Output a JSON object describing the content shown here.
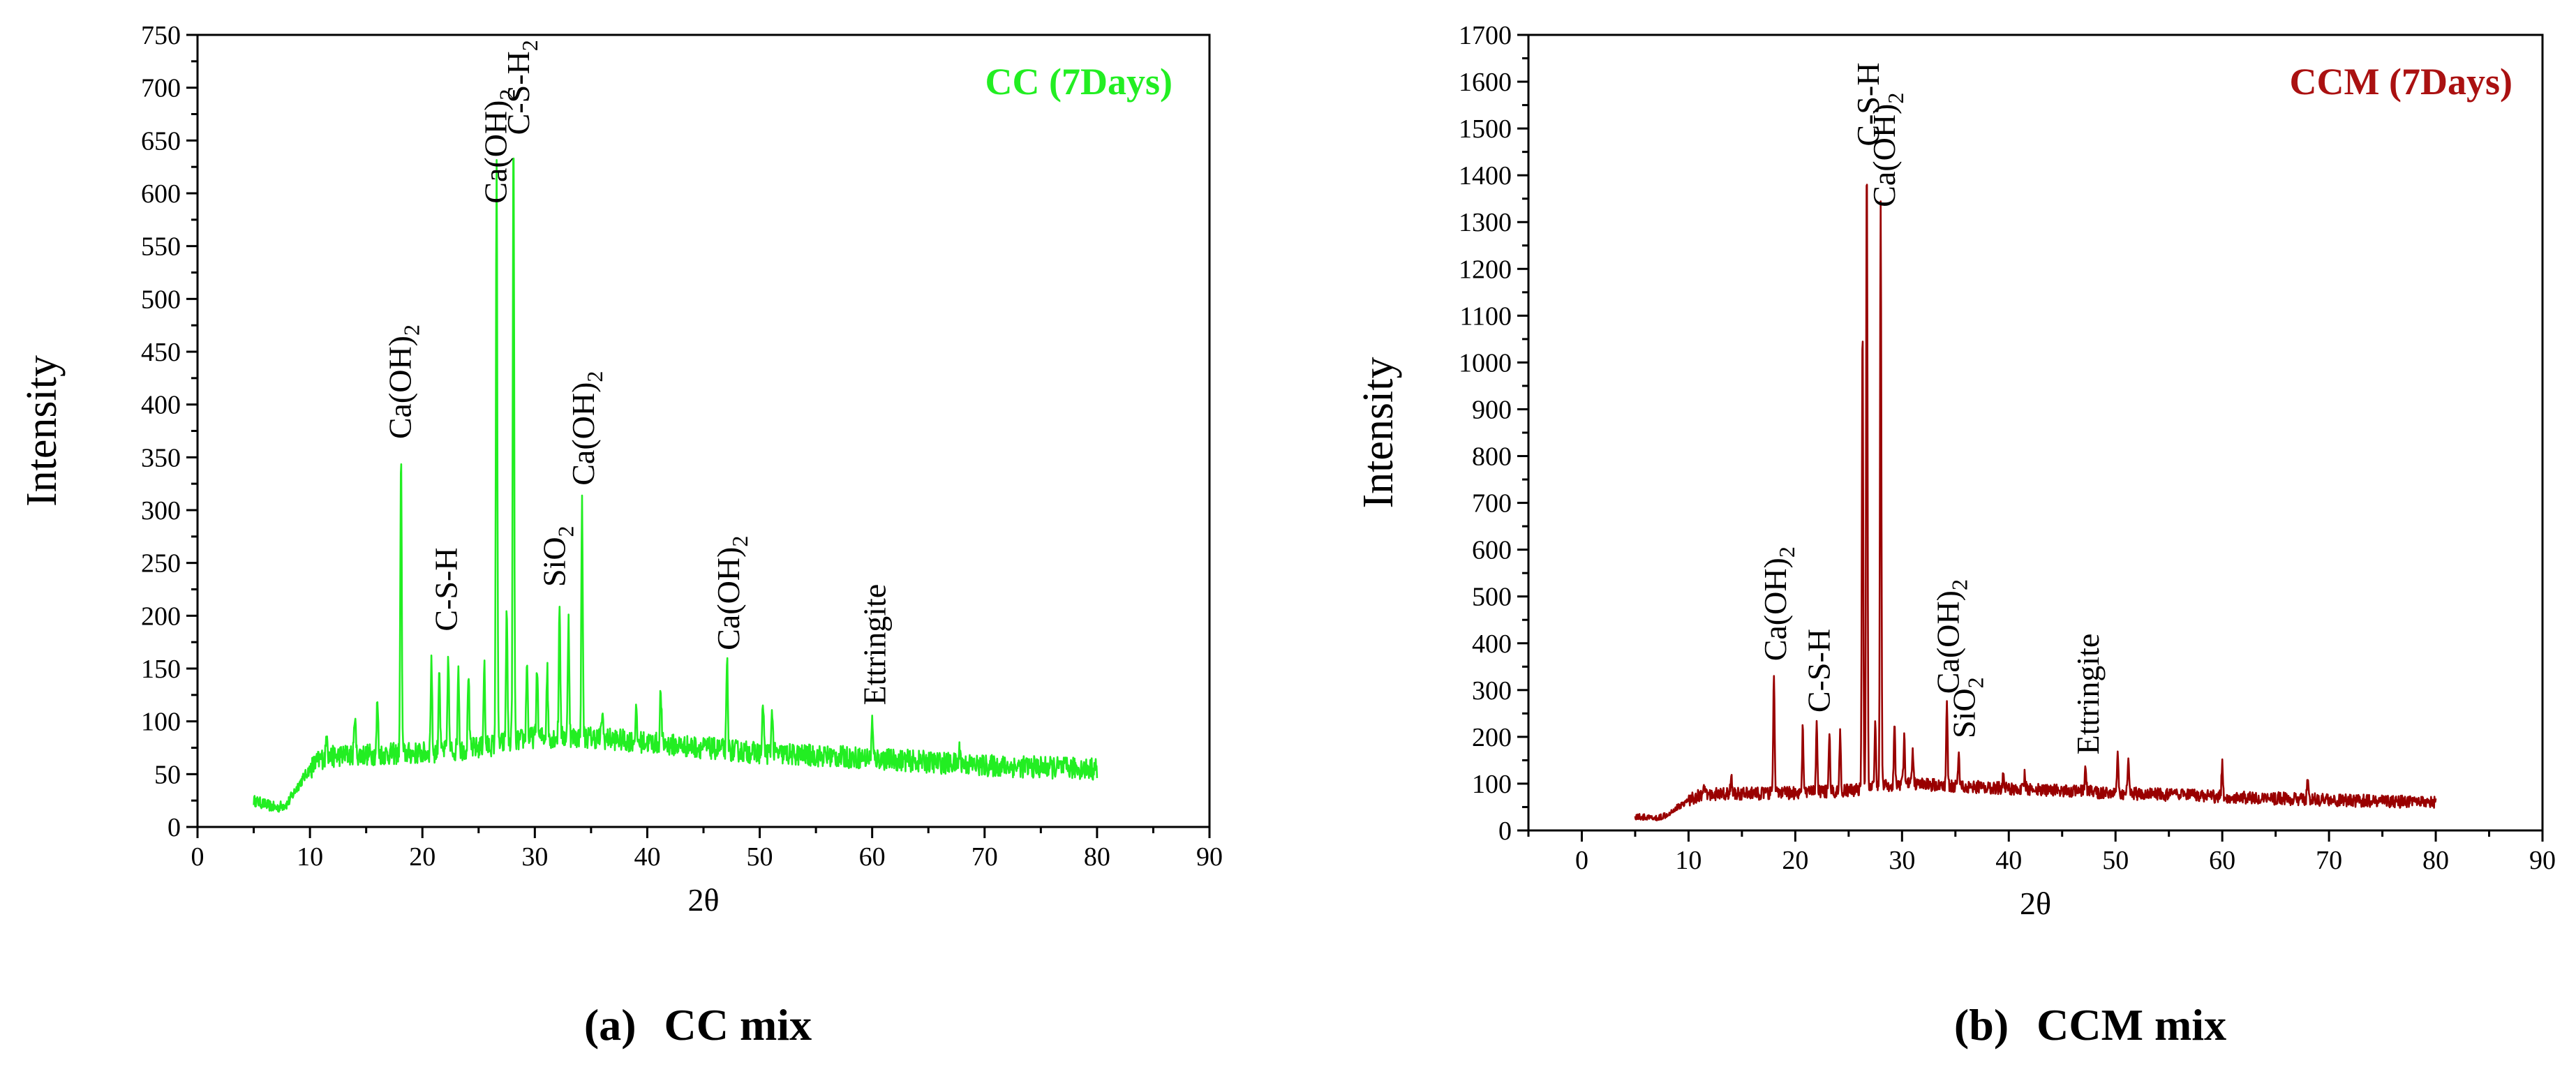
{
  "chart_data": [
    {
      "type": "line",
      "panel": "a",
      "title": "CC (7Days)",
      "caption_label": "(a)",
      "caption_text": "CC mix",
      "xlabel": "2θ",
      "ylabel": "Intensity",
      "xlim": [
        0,
        90
      ],
      "ylim": [
        0,
        750
      ],
      "x_ticks": [
        "0",
        "10",
        "20",
        "30",
        "40",
        "50",
        "60",
        "70",
        "80",
        "90"
      ],
      "y_ticks": [
        "0",
        "50",
        "100",
        "150",
        "200",
        "250",
        "300",
        "350",
        "400",
        "450",
        "500",
        "550",
        "600",
        "650",
        "700",
        "750"
      ],
      "color": "#22ee22",
      "title_color": "#22ee22",
      "x_range": [
        5,
        80
      ],
      "series": [
        {
          "name": "CC (7Days)",
          "baseline": [
            [
              5,
              25
            ],
            [
              7,
              18
            ],
            [
              8,
              22
            ],
            [
              9,
              40
            ],
            [
              10,
              55
            ],
            [
              11,
              65
            ],
            [
              13,
              68
            ],
            [
              20,
              70
            ],
            [
              25,
              75
            ],
            [
              30,
              85
            ],
            [
              35,
              85
            ],
            [
              40,
              80
            ],
            [
              50,
              70
            ],
            [
              60,
              65
            ],
            [
              70,
              58
            ],
            [
              80,
              55
            ]
          ],
          "peaks": [
            [
              11.5,
              95
            ],
            [
              14,
              110
            ],
            [
              16,
              120
            ],
            [
              18.1,
              352
            ],
            [
              20.8,
              160
            ],
            [
              21.5,
              155
            ],
            [
              22.3,
              165
            ],
            [
              23.2,
              155
            ],
            [
              24.1,
              150
            ],
            [
              25.5,
              155
            ],
            [
              26.6,
              640
            ],
            [
              27.5,
              210
            ],
            [
              28.1,
              658
            ],
            [
              29.3,
              160
            ],
            [
              30.2,
              155
            ],
            [
              31.1,
              150
            ],
            [
              32.2,
              215
            ],
            [
              33,
              200
            ],
            [
              34.2,
              310
            ],
            [
              36,
              110
            ],
            [
              39,
              110
            ],
            [
              41.2,
              130
            ],
            [
              47.1,
              155
            ],
            [
              50.3,
              120
            ],
            [
              51.1,
              115
            ],
            [
              60,
              100
            ],
            [
              67.8,
              75
            ]
          ]
        }
      ],
      "annotations": [
        {
          "text": "Ca(OH)",
          "sub": "2",
          "x": 18.1,
          "y": 362
        },
        {
          "text": "C-S-H",
          "sub": "",
          "x": 22.2,
          "y": 180
        },
        {
          "text": "Ca(OH)",
          "sub": "2",
          "x": 26.6,
          "y": 585
        },
        {
          "text": "C-S-H",
          "sub": "2",
          "x": 28.6,
          "y": 650
        },
        {
          "text": "SiO",
          "sub": "2",
          "x": 31.8,
          "y": 222
        },
        {
          "text": "Ca(OH)",
          "sub": "2",
          "x": 34.4,
          "y": 318
        },
        {
          "text": "Ca(OH)",
          "sub": "2",
          "x": 47.3,
          "y": 162
        },
        {
          "text": "Ettringite",
          "sub": "",
          "x": 60.3,
          "y": 110
        }
      ]
    },
    {
      "type": "line",
      "panel": "b",
      "title": "CCM (7Days)",
      "caption_label": "(b)",
      "caption_text": "CCM mix",
      "xlabel": "2θ",
      "ylabel": "Intensity",
      "xlim": [
        -5,
        90
      ],
      "ylim": [
        0,
        1700
      ],
      "x_ticks": [
        "0",
        "10",
        "20",
        "30",
        "40",
        "50",
        "60",
        "70",
        "80",
        "90"
      ],
      "y_ticks": [
        "0",
        "100",
        "200",
        "300",
        "400",
        "500",
        "600",
        "700",
        "800",
        "900",
        "1000",
        "1100",
        "1200",
        "1300",
        "1400",
        "1500",
        "1600",
        "1700"
      ],
      "color": "#990000",
      "title_color": "#aa1111",
      "x_range": [
        5,
        80
      ],
      "series": [
        {
          "name": "CCM (7Days)",
          "baseline": [
            [
              5,
              30
            ],
            [
              7,
              25
            ],
            [
              8,
              35
            ],
            [
              9,
              50
            ],
            [
              10,
              65
            ],
            [
              11,
              75
            ],
            [
              13,
              78
            ],
            [
              20,
              80
            ],
            [
              25,
              85
            ],
            [
              30,
              100
            ],
            [
              35,
              95
            ],
            [
              40,
              90
            ],
            [
              50,
              80
            ],
            [
              60,
              72
            ],
            [
              70,
              65
            ],
            [
              80,
              60
            ]
          ],
          "peaks": [
            [
              11.5,
              90
            ],
            [
              14,
              120
            ],
            [
              18,
              340
            ],
            [
              20.7,
              220
            ],
            [
              22,
              230
            ],
            [
              23.2,
              200
            ],
            [
              24.2,
              210
            ],
            [
              26.3,
              1080
            ],
            [
              26.7,
              1440
            ],
            [
              27.5,
              230
            ],
            [
              28,
              1350
            ],
            [
              29.3,
              220
            ],
            [
              30.2,
              200
            ],
            [
              31,
              180
            ],
            [
              34.2,
              270
            ],
            [
              35.3,
              170
            ],
            [
              39.5,
              130
            ],
            [
              41.5,
              120
            ],
            [
              47.2,
              140
            ],
            [
              50.2,
              165
            ],
            [
              51.2,
              165
            ],
            [
              60,
              150
            ],
            [
              68,
              110
            ]
          ]
        }
      ],
      "annotations": [
        {
          "text": "Ca(OH)",
          "sub": "2",
          "x": 18.2,
          "y": 350
        },
        {
          "text": "C-S-H",
          "sub": "",
          "x": 22.3,
          "y": 240
        },
        {
          "text": "C-S-H",
          "sub": "",
          "x": 26.9,
          "y": 1450
        },
        {
          "text": "Ca(OH)",
          "sub": "2",
          "x": 28.4,
          "y": 1320
        },
        {
          "text": "Ca(OH)",
          "sub": "2",
          "x": 34.4,
          "y": 280
        },
        {
          "text": "SiO",
          "sub": "2",
          "x": 35.9,
          "y": 185
        },
        {
          "text": "Ettringite",
          "sub": "",
          "x": 47.5,
          "y": 150
        }
      ]
    }
  ]
}
